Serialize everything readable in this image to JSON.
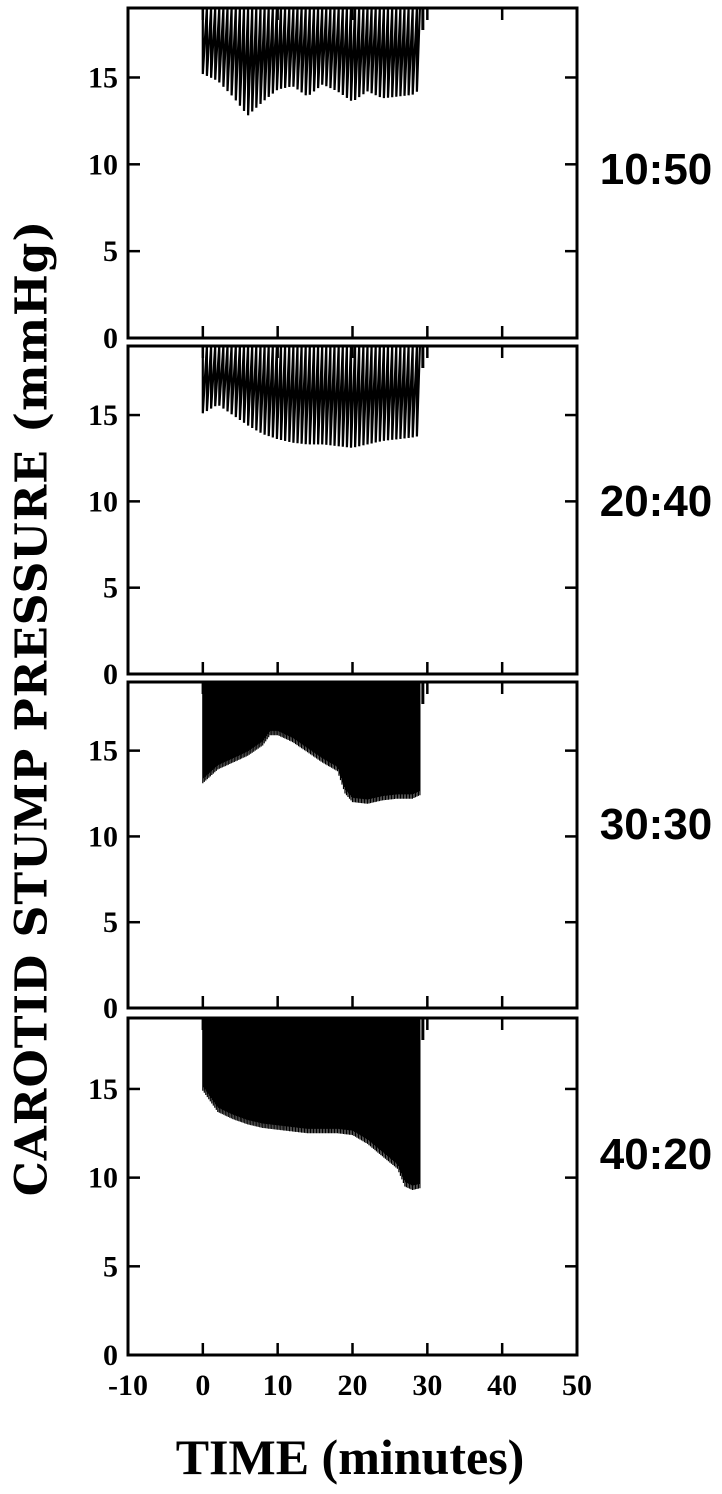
{
  "chart_data": {
    "type": "line",
    "ylabel": "CAROTID STUMP PRESSURE (mmHg)",
    "xlabel": "TIME (minutes)",
    "xlim": [
      -10,
      50
    ],
    "ylim": [
      0,
      19
    ],
    "x_ticks": [
      "-10",
      "0",
      "10",
      "20",
      "30",
      "40",
      "50"
    ],
    "y_ticks": [
      "0",
      "5",
      "10",
      "15"
    ],
    "panels": [
      {
        "ratio_label": "10:50",
        "series": [
          {
            "x": [
              0,
              2,
              4,
              6,
              8,
              10,
              12,
              14,
              16,
              18,
              20,
              22,
              24,
              26,
              28,
              29
            ],
            "y": [
              15.2,
              14.8,
              13.9,
              12.8,
              13.6,
              14.3,
              14.5,
              13.9,
              14.6,
              14.2,
              13.6,
              14.2,
              13.8,
              13.9,
              14.0,
              14.3
            ]
          }
        ]
      },
      {
        "ratio_label": "20:40",
        "series": [
          {
            "x": [
              0,
              2,
              4,
              6,
              8,
              10,
              12,
              14,
              16,
              18,
              20,
              22,
              24,
              26,
              28,
              29
            ],
            "y": [
              15.1,
              15.6,
              15.0,
              14.4,
              13.9,
              13.6,
              13.4,
              13.3,
              13.3,
              13.2,
              13.1,
              13.3,
              13.5,
              13.6,
              13.7,
              13.8
            ]
          }
        ]
      },
      {
        "ratio_label": "30:30",
        "series": [
          {
            "x": [
              0,
              2,
              4,
              6,
              8,
              9,
              10,
              12,
              14,
              16,
              18,
              19,
              20,
              22,
              24,
              26,
              28,
              29
            ],
            "y": [
              13.2,
              14.0,
              14.4,
              14.8,
              15.4,
              16.0,
              16.0,
              15.6,
              15.0,
              14.4,
              13.9,
              12.6,
              12.1,
              12.0,
              12.2,
              12.3,
              12.3,
              12.5
            ]
          }
        ]
      },
      {
        "ratio_label": "40:20",
        "series": [
          {
            "x": [
              0,
              1,
              2,
              4,
              6,
              8,
              10,
              12,
              14,
              16,
              18,
              20,
              22,
              24,
              26,
              27,
              28,
              29
            ],
            "y": [
              15.0,
              14.4,
              13.8,
              13.4,
              13.1,
              12.9,
              12.8,
              12.7,
              12.6,
              12.6,
              12.6,
              12.5,
              12.0,
              11.3,
              10.6,
              9.6,
              9.4,
              9.5
            ]
          }
        ]
      }
    ]
  }
}
